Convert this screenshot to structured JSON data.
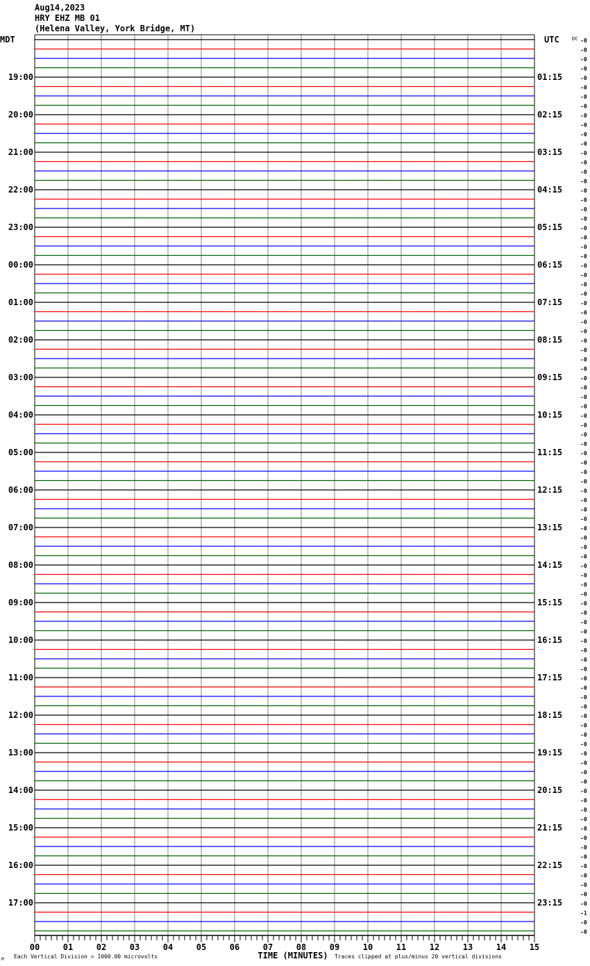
{
  "header": {
    "date": "Aug14,2023",
    "station": "HRY EHZ MB 01",
    "location": "(Helena Valley, York Bridge, MT)"
  },
  "chart_data": {
    "type": "line",
    "title": "HRY EHZ MB 01",
    "left_axis_label": "MDT",
    "right_axis_label": "UTC",
    "dc_label": "DC",
    "xlabel": "TIME (MINUTES)",
    "xlim": [
      0,
      15
    ],
    "x_ticks": [
      "00",
      "01",
      "02",
      "03",
      "04",
      "05",
      "06",
      "07",
      "08",
      "09",
      "10",
      "11",
      "12",
      "13",
      "14",
      "15"
    ],
    "left_hour_labels": [
      "",
      "19:00",
      "20:00",
      "21:00",
      "22:00",
      "23:00",
      "00:00",
      "01:00",
      "02:00",
      "03:00",
      "04:00",
      "05:00",
      "06:00",
      "07:00",
      "08:00",
      "09:00",
      "10:00",
      "11:00",
      "12:00",
      "13:00",
      "14:00",
      "15:00",
      "16:00",
      "17:00"
    ],
    "right_hour_labels": [
      "",
      "01:15",
      "02:15",
      "03:15",
      "04:15",
      "05:15",
      "06:15",
      "07:15",
      "08:15",
      "09:15",
      "10:15",
      "11:15",
      "12:15",
      "13:15",
      "14:15",
      "15:15",
      "16:15",
      "17:15",
      "18:15",
      "19:15",
      "20:15",
      "21:15",
      "22:15",
      "23:15"
    ],
    "traces_per_hour": 4,
    "trace_colors": [
      "#000000",
      "#ff0000",
      "#0000ff",
      "#006400"
    ],
    "grid_color": "#808080",
    "dc_values": [
      "-0",
      "-0",
      "-0",
      "-0",
      "-0",
      "-0",
      "-0",
      "-0",
      "-0",
      "-0",
      "-0",
      "-0",
      "-0",
      "-0",
      "-0",
      "-0",
      "-0",
      "-0",
      "-0",
      "-0",
      "-0",
      "-0",
      "-0",
      "-0",
      "-0",
      "-0",
      "-0",
      "-0",
      "-0",
      "-0",
      "-0",
      "-0",
      "-0",
      "-0",
      "-0",
      "-0",
      "-0",
      "-0",
      "-0",
      "-0",
      "-0",
      "-0",
      "-0",
      "-0",
      "-0",
      "-0",
      "-0",
      "-0",
      "-0",
      "-0",
      "-0",
      "-0",
      "-0",
      "-0",
      "-0",
      "-0",
      "-0",
      "-0",
      "-0",
      "-0",
      "-0",
      "-0",
      "-0",
      "-0",
      "-0",
      "-0",
      "-0",
      "-0",
      "-0",
      "-0",
      "-0",
      "-0",
      "-0",
      "-0",
      "-0",
      "-0",
      "-0",
      "-0",
      "-0",
      "-0",
      "-0",
      "-0",
      "-0",
      "-0",
      "-0",
      "-0",
      "-0",
      "-0",
      "-0",
      "-0",
      "-0",
      "-0",
      "-0",
      "-1",
      "-0",
      "-0"
    ],
    "footer_left": "Each Vertical Division = 1000.00 microvolts",
    "footer_right": "Traces clipped at plus/minus 20 vertical divisions",
    "corner_mark": "M"
  }
}
